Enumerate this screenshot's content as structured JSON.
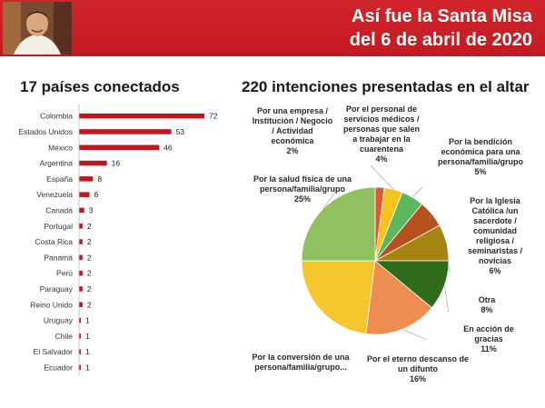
{
  "header": {
    "line1": "Así fue la Santa Misa",
    "line2": "del 6 de abril de 2020"
  },
  "colors": {
    "header_bg": "#c91f26",
    "bar": "#c0171e",
    "pie": [
      "#e4572e",
      "#f5c31b",
      "#5cb85c",
      "#b8501e",
      "#a5840f",
      "#2e6b1c",
      "#ef8c4f",
      "#f7c52e",
      "#8fc25f"
    ]
  },
  "chart_data": [
    {
      "type": "bar",
      "orientation": "horizontal",
      "title": "17 países conectados",
      "categories": [
        "Colombia",
        "Estados Unidos",
        "México",
        "Argentina",
        "España",
        "Venezuela",
        "Canadá",
        "Portugal",
        "Costa Rica",
        "Panamá",
        "Perú",
        "Paraguay",
        "Reino Unido",
        "Uruguay",
        "Chile",
        "El Salvador",
        "Ecuador"
      ],
      "values": [
        72,
        53,
        46,
        16,
        8,
        6,
        3,
        2,
        2,
        2,
        2,
        2,
        2,
        1,
        1,
        1,
        1
      ],
      "data_labels": [
        "72",
        "53",
        "46",
        "16",
        "8",
        "6",
        "3",
        "2",
        "2",
        "2",
        "2",
        "2",
        "2",
        "1",
        "1",
        "1",
        "1"
      ],
      "xlim": [
        0,
        72
      ],
      "grid": false
    },
    {
      "type": "pie",
      "title": "220 intenciones presentadas en el altar",
      "slices": [
        {
          "label": "Por una empresa / Institución / Negocio / Actividad económica",
          "pct_label": "2%",
          "value": 2
        },
        {
          "label": "Por el personal de servicios médicos / personas que salen a trabajar en la cuarentena",
          "pct_label": "4%",
          "value": 4
        },
        {
          "label": "Por la bendición económica para una persona/familia/grupo",
          "pct_label": "5%",
          "value": 5
        },
        {
          "label": "Por la Iglesia Católica /un sacerdote / comunidad religiosa / seminaristas / novicias",
          "pct_label": "6%",
          "value": 6
        },
        {
          "label": "Otra",
          "pct_label": "8%",
          "value": 8
        },
        {
          "label": "En acción de gracias",
          "pct_label": "11%",
          "value": 11
        },
        {
          "label": "Por el eterno descanso de un difunto",
          "pct_label": "16%",
          "value": 16
        },
        {
          "label": "Por la conversión de una persona/familia/grupo...",
          "pct_label": "",
          "value": 23
        },
        {
          "label": "Por la salud física de una persona/familia/grupo",
          "pct_label": "25%",
          "value": 25
        }
      ]
    }
  ]
}
